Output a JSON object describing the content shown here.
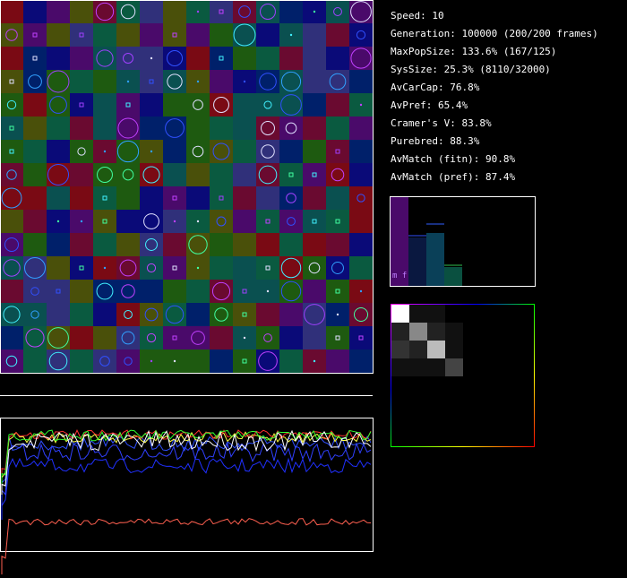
{
  "stats": [
    "Speed: 10",
    "Generation: 100000 (200/200 frames)",
    "MaxPopSize: 133.6% (167/125)",
    "SysSize: 25.3% (8110/32000)",
    "AvCarCap: 76.8%",
    "AvPref: 65.4%",
    "Cramer's V: 83.8%",
    "Purebred: 88.3%",
    "AvMatch (fitn): 90.8%",
    "AvMatch (pref): 87.4%"
  ],
  "histogram_label": "m f"
}
